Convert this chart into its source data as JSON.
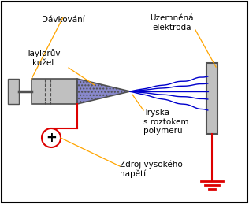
{
  "bg_color": "#ffffff",
  "border_color": "#000000",
  "label_davkovani": "Dávkování",
  "label_taylor": "Taylorův\nkužel",
  "label_elektroda": "Uzemněná\nelektroda",
  "label_tryska": "Tryska\ns roztokem\npolymeru",
  "label_zdroj": "Zdroj vysokého\nnapětí",
  "orange_color": "#FFA500",
  "blue_color": "#0000CC",
  "red_color": "#DD0000",
  "dark_gray": "#505050",
  "light_gray": "#C0C0C0",
  "dot_fill": "#8888CC",
  "font_size": 7.5
}
